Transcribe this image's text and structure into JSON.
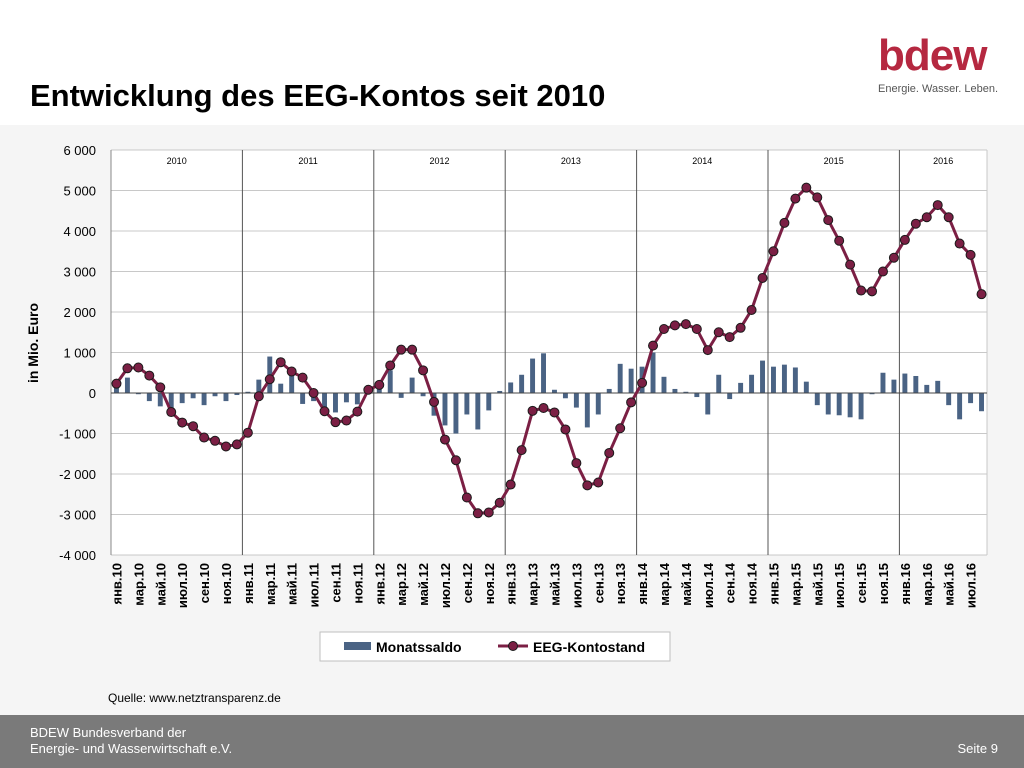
{
  "slide": {
    "title": "Entwicklung des EEG-Kontos seit 2010",
    "source": "Quelle: www.netztransparenz.de"
  },
  "logo": {
    "wordmark": "bdew",
    "tagline": "Energie. Wasser. Leben.",
    "color": "#b52840"
  },
  "footer": {
    "org_line1": "BDEW Bundesverband der",
    "org_line2": "Energie- und Wasserwirtschaft e.V.",
    "page": "Seite 9"
  },
  "chart_data": {
    "type": "bar+line",
    "ylabel": "in Mio. Euro",
    "ylim": [
      -4000,
      6000
    ],
    "yticks": [
      6000,
      5000,
      4000,
      3000,
      2000,
      1000,
      0,
      -1000,
      -2000,
      -3000,
      -4000
    ],
    "ytick_labels": [
      "6 000",
      "5 000",
      "4 000",
      "3 000",
      "2 000",
      "1 000",
      "0",
      "-1 000",
      "-2 000",
      "-3 000",
      "-4 000"
    ],
    "grid": "horizontal",
    "legend_position": "bottom",
    "years": [
      {
        "label": "2010",
        "start": 0,
        "months": 12
      },
      {
        "label": "2011",
        "start": 12,
        "months": 12
      },
      {
        "label": "2012",
        "start": 24,
        "months": 12
      },
      {
        "label": "2013",
        "start": 36,
        "months": 12
      },
      {
        "label": "2014",
        "start": 48,
        "months": 12
      },
      {
        "label": "2015",
        "start": 60,
        "months": 12
      },
      {
        "label": "2016",
        "start": 72,
        "months": 8
      }
    ],
    "x_labels": [
      {
        "index": 0,
        "label": "янв.10"
      },
      {
        "index": 2,
        "label": "мар.10"
      },
      {
        "index": 4,
        "label": "май.10"
      },
      {
        "index": 6,
        "label": "июл.10"
      },
      {
        "index": 8,
        "label": "сен.10"
      },
      {
        "index": 10,
        "label": "ноя.10"
      },
      {
        "index": 12,
        "label": "янв.11"
      },
      {
        "index": 14,
        "label": "мар.11"
      },
      {
        "index": 16,
        "label": "май.11"
      },
      {
        "index": 18,
        "label": "июл.11"
      },
      {
        "index": 20,
        "label": "сен.11"
      },
      {
        "index": 22,
        "label": "ноя.11"
      },
      {
        "index": 24,
        "label": "янв.12"
      },
      {
        "index": 26,
        "label": "мар.12"
      },
      {
        "index": 28,
        "label": "май.12"
      },
      {
        "index": 30,
        "label": "июл.12"
      },
      {
        "index": 32,
        "label": "сен.12"
      },
      {
        "index": 34,
        "label": "ноя.12"
      },
      {
        "index": 36,
        "label": "янв.13"
      },
      {
        "index": 38,
        "label": "мар.13"
      },
      {
        "index": 40,
        "label": "май.13"
      },
      {
        "index": 42,
        "label": "июл.13"
      },
      {
        "index": 44,
        "label": "сен.13"
      },
      {
        "index": 46,
        "label": "ноя.13"
      },
      {
        "index": 48,
        "label": "янв.14"
      },
      {
        "index": 50,
        "label": "мар.14"
      },
      {
        "index": 52,
        "label": "май.14"
      },
      {
        "index": 54,
        "label": "июл.14"
      },
      {
        "index": 56,
        "label": "сен.14"
      },
      {
        "index": 58,
        "label": "ноя.14"
      },
      {
        "index": 60,
        "label": "янв.15"
      },
      {
        "index": 62,
        "label": "мар.15"
      },
      {
        "index": 64,
        "label": "май.15"
      },
      {
        "index": 66,
        "label": "июл.15"
      },
      {
        "index": 68,
        "label": "сен.15"
      },
      {
        "index": 70,
        "label": "ноя.15"
      },
      {
        "index": 72,
        "label": "янв.16"
      },
      {
        "index": 74,
        "label": "мар.16"
      },
      {
        "index": 76,
        "label": "май.16"
      },
      {
        "index": 78,
        "label": "июл.16"
      }
    ],
    "series": [
      {
        "name": "Monatssaldo",
        "kind": "bar",
        "color": "#4a6384",
        "values": [
          150,
          380,
          -30,
          -200,
          -330,
          -430,
          -250,
          -130,
          -300,
          -80,
          -200,
          -50,
          30,
          330,
          900,
          230,
          430,
          -270,
          -200,
          -390,
          -480,
          -230,
          -280,
          70,
          200,
          560,
          -120,
          380,
          -80,
          -560,
          -800,
          -1000,
          -530,
          -900,
          -430,
          50,
          260,
          450,
          850,
          980,
          80,
          -130,
          -360,
          -850,
          -530,
          100,
          720,
          600,
          650,
          1000,
          400,
          100,
          30,
          -100,
          -530,
          450,
          -150,
          250,
          450,
          800,
          650,
          700,
          630,
          280,
          -300,
          -530,
          -550,
          -600,
          -650,
          -30,
          500,
          330,
          480,
          420,
          200,
          300,
          -300,
          -650,
          -250,
          -450
        ]
      },
      {
        "name": "EEG-Kontostand",
        "kind": "line",
        "color": "#7b1f44",
        "values": [
          230,
          610,
          630,
          430,
          140,
          -470,
          -730,
          -820,
          -1100,
          -1180,
          -1320,
          -1270,
          -980,
          -80,
          340,
          760,
          530,
          380,
          0,
          -450,
          -720,
          -680,
          -460,
          80,
          200,
          680,
          1070,
          1070,
          560,
          -220,
          -1150,
          -1660,
          -2580,
          -2970,
          -2950,
          -2710,
          -2260,
          -1410,
          -440,
          -370,
          -480,
          -900,
          -1730,
          -2280,
          -2210,
          -1480,
          -870,
          -230,
          250,
          1170,
          1580,
          1670,
          1700,
          1580,
          1060,
          1500,
          1380,
          1610,
          2050,
          2840,
          3500,
          4200,
          4800,
          5070,
          4830,
          4270,
          3760,
          3170,
          2530,
          2510,
          3000,
          3340,
          3780,
          4180,
          4340,
          4640,
          4340,
          3690,
          3410,
          2440
        ]
      }
    ]
  }
}
